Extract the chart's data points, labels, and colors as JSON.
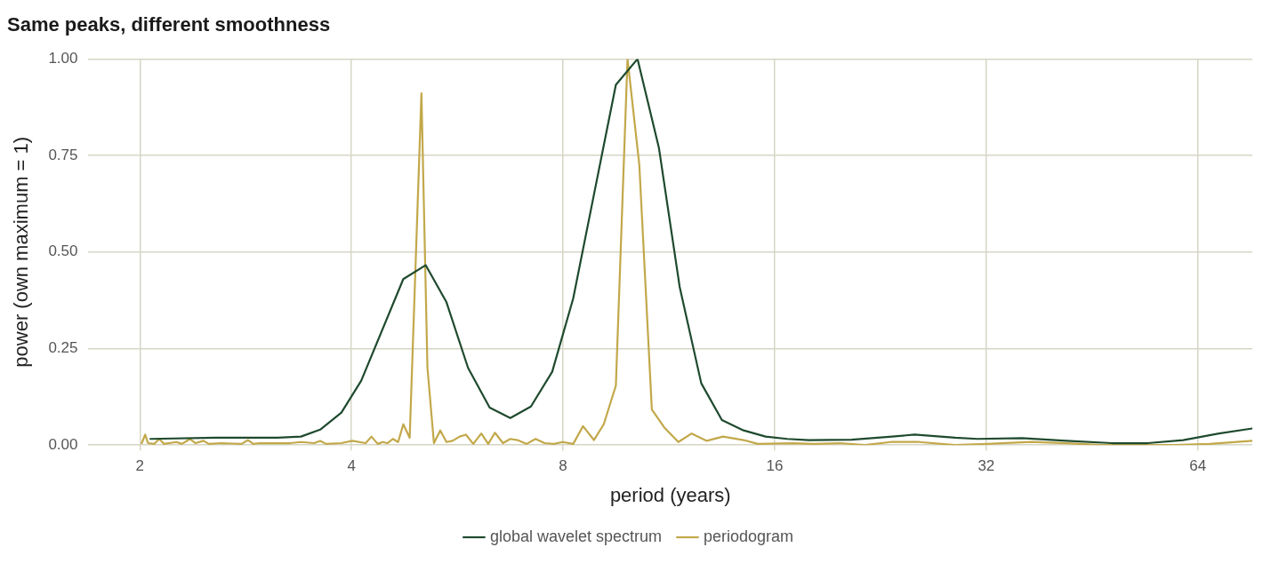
{
  "chart_data": {
    "type": "line",
    "title": "Same peaks, different smoothness",
    "xlabel": "period (years)",
    "ylabel": "power (own maximum = 1)",
    "log": "x",
    "xlim": [
      1.69,
      76.5
    ],
    "xticks": [
      2,
      4,
      8,
      16,
      32,
      64
    ],
    "ylim": [
      0,
      1
    ],
    "yticks": [
      {
        "value": 0,
        "label": "0.00"
      },
      {
        "value": 0.25,
        "label": "0.25"
      },
      {
        "value": 0.5,
        "label": "0.50"
      },
      {
        "value": 0.75,
        "label": "0.75"
      },
      {
        "value": 1,
        "label": "1.00"
      }
    ],
    "grid": true,
    "legend": "bottom",
    "marker": "none",
    "line_style": "solid",
    "series": [
      {
        "name": "global wavelet spectrum",
        "color": "#1f4a2e",
        "x": [
          2.07,
          2.56,
          3.14,
          3.39,
          3.61,
          3.87,
          4.13,
          4.74,
          5.1,
          5.46,
          5.86,
          6.29,
          6.73,
          7.2,
          7.72,
          8.27,
          9.51,
          10.21,
          10.95,
          11.72,
          12.58,
          13.46,
          14.45,
          15.53,
          16.67,
          17.89,
          20.6,
          23.5,
          25.3,
          28.9,
          31.1,
          36.0,
          41.6,
          48.3,
          54.3,
          61.0,
          68.6,
          76.5
        ],
        "values": [
          0.016,
          0.019,
          0.019,
          0.022,
          0.04,
          0.084,
          0.167,
          0.43,
          0.466,
          0.37,
          0.2,
          0.097,
          0.07,
          0.1,
          0.19,
          0.38,
          0.933,
          1.0,
          0.77,
          0.41,
          0.16,
          0.065,
          0.038,
          0.022,
          0.016,
          0.013,
          0.014,
          0.022,
          0.027,
          0.019,
          0.016,
          0.018,
          0.011,
          0.005,
          0.005,
          0.013,
          0.03,
          0.043
        ]
      },
      {
        "name": "periodogram",
        "color": "#c2a84a",
        "x": [
          2.012,
          2.035,
          2.054,
          2.096,
          2.13,
          2.165,
          2.254,
          2.295,
          2.357,
          2.399,
          2.463,
          2.506,
          2.61,
          2.79,
          2.85,
          2.9,
          2.96,
          3.27,
          3.39,
          3.54,
          3.61,
          3.68,
          3.87,
          4.01,
          4.19,
          4.27,
          4.36,
          4.43,
          4.5,
          4.58,
          4.66,
          4.74,
          4.84,
          5.03,
          5.13,
          5.24,
          5.35,
          5.46,
          5.57,
          5.7,
          5.82,
          5.96,
          6.12,
          6.26,
          6.4,
          6.57,
          6.73,
          6.89,
          7.1,
          7.31,
          7.53,
          7.76,
          7.99,
          8.27,
          8.54,
          8.85,
          9.14,
          9.51,
          9.88,
          10.27,
          10.7,
          11.14,
          11.67,
          12.19,
          12.81,
          13.51,
          14.45,
          15.14,
          17.0,
          18.2,
          19.8,
          21.5,
          23.4,
          25.7,
          28.9,
          32.1,
          37.0,
          41.6,
          46.8,
          59.2,
          66.5,
          76.5
        ],
        "values": [
          0.005,
          0.027,
          0.005,
          0.003,
          0.016,
          0.003,
          0.008,
          0.003,
          0.016,
          0.005,
          0.011,
          0.003,
          0.005,
          0.003,
          0.013,
          0.003,
          0.005,
          0.005,
          0.008,
          0.005,
          0.011,
          0.003,
          0.005,
          0.011,
          0.005,
          0.022,
          0.003,
          0.008,
          0.005,
          0.016,
          0.008,
          0.054,
          0.019,
          0.911,
          0.2,
          0.005,
          0.038,
          0.008,
          0.011,
          0.022,
          0.027,
          0.003,
          0.03,
          0.003,
          0.032,
          0.005,
          0.016,
          0.013,
          0.003,
          0.016,
          0.005,
          0.003,
          0.008,
          0.003,
          0.049,
          0.013,
          0.054,
          0.154,
          1.0,
          0.725,
          0.092,
          0.046,
          0.008,
          0.03,
          0.011,
          0.022,
          0.013,
          0.003,
          0.005,
          0.003,
          0.005,
          0,
          0.008,
          0.008,
          0,
          0.003,
          0.008,
          0.005,
          0,
          0,
          0.003,
          0.011
        ]
      }
    ]
  }
}
